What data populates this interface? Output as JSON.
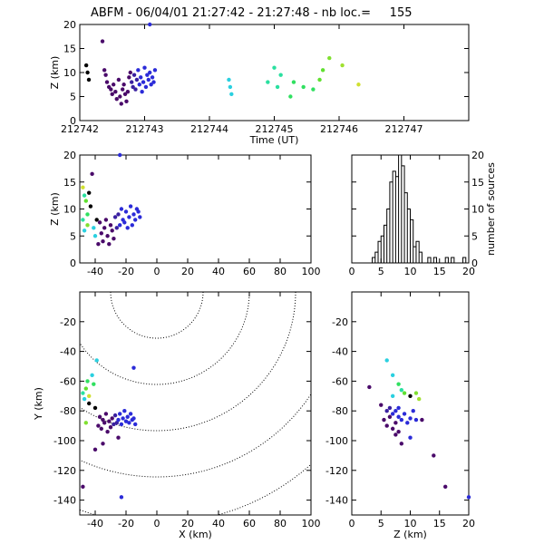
{
  "title": "ABFM - 06/04/01 21:27:42 - 21:27:48 - nb loc.=     155",
  "chart_data": [
    {
      "id": "time",
      "type": "scatter",
      "xlabel": "Time (UT)",
      "ylabel": "Z (km)",
      "xlim": [
        212742,
        212748
      ],
      "ylim": [
        0,
        20
      ],
      "xticks": [
        212742,
        212743,
        212744,
        212745,
        212746,
        212747
      ],
      "xticklabels": [
        "212742",
        "212743",
        "212744",
        "212745",
        "212746",
        "212747"
      ],
      "yticks": [
        0,
        5,
        10,
        15,
        20
      ],
      "points": [
        {
          "x": 212742.1,
          "y": 11.5,
          "c": "#000000"
        },
        {
          "x": 212742.12,
          "y": 10.0,
          "c": "#000000"
        },
        {
          "x": 212742.14,
          "y": 8.5,
          "c": "#000000"
        },
        {
          "x": 212742.35,
          "y": 16.5,
          "c": "#4a0a6a"
        },
        {
          "x": 212742.38,
          "y": 10.5,
          "c": "#4a0a6a"
        },
        {
          "x": 212742.4,
          "y": 9.5,
          "c": "#4a0a6a"
        },
        {
          "x": 212742.42,
          "y": 8.0,
          "c": "#4a0a6a"
        },
        {
          "x": 212742.45,
          "y": 7.0,
          "c": "#4a0a6a"
        },
        {
          "x": 212742.48,
          "y": 6.5,
          "c": "#4a0a6a"
        },
        {
          "x": 212742.5,
          "y": 5.5,
          "c": "#4a0a6a"
        },
        {
          "x": 212742.52,
          "y": 7.5,
          "c": "#4a0a6a"
        },
        {
          "x": 212742.55,
          "y": 6.0,
          "c": "#4a0a6a"
        },
        {
          "x": 212742.57,
          "y": 4.5,
          "c": "#4a0a6a"
        },
        {
          "x": 212742.6,
          "y": 8.5,
          "c": "#4a0a6a"
        },
        {
          "x": 212742.62,
          "y": 5.0,
          "c": "#4a0a6a"
        },
        {
          "x": 212742.64,
          "y": 3.5,
          "c": "#4a0a6a"
        },
        {
          "x": 212742.66,
          "y": 6.5,
          "c": "#4a0a6a"
        },
        {
          "x": 212742.68,
          "y": 7.5,
          "c": "#4a0a6a"
        },
        {
          "x": 212742.7,
          "y": 5.5,
          "c": "#4a0a6a"
        },
        {
          "x": 212742.72,
          "y": 4.0,
          "c": "#4a0a6a"
        },
        {
          "x": 212742.74,
          "y": 6.0,
          "c": "#4a0a6a"
        },
        {
          "x": 212742.76,
          "y": 9.0,
          "c": "#4a0a6a"
        },
        {
          "x": 212742.78,
          "y": 10.0,
          "c": "#4a0a6a"
        },
        {
          "x": 212742.8,
          "y": 8.0,
          "c": "#3a20a0"
        },
        {
          "x": 212742.82,
          "y": 7.0,
          "c": "#3a20a0"
        },
        {
          "x": 212742.84,
          "y": 9.5,
          "c": "#3a20a0"
        },
        {
          "x": 212742.86,
          "y": 6.5,
          "c": "#3a20a0"
        },
        {
          "x": 212742.88,
          "y": 8.5,
          "c": "#3a20a0"
        },
        {
          "x": 212742.9,
          "y": 10.5,
          "c": "#2b2bd8"
        },
        {
          "x": 212742.92,
          "y": 7.5,
          "c": "#2b2bd8"
        },
        {
          "x": 212742.94,
          "y": 9.0,
          "c": "#2b2bd8"
        },
        {
          "x": 212742.96,
          "y": 6.0,
          "c": "#2b2bd8"
        },
        {
          "x": 212742.98,
          "y": 8.0,
          "c": "#2b2bd8"
        },
        {
          "x": 212743.0,
          "y": 11.0,
          "c": "#2b2bd8"
        },
        {
          "x": 212743.02,
          "y": 7.0,
          "c": "#2b2bd8"
        },
        {
          "x": 212743.04,
          "y": 9.5,
          "c": "#2b2bd8"
        },
        {
          "x": 212743.06,
          "y": 8.5,
          "c": "#2b2bd8"
        },
        {
          "x": 212743.08,
          "y": 10.0,
          "c": "#2b2bd8"
        },
        {
          "x": 212743.1,
          "y": 7.5,
          "c": "#2b2bd8"
        },
        {
          "x": 212743.12,
          "y": 9.0,
          "c": "#2b2bd8"
        },
        {
          "x": 212743.14,
          "y": 8.0,
          "c": "#2b2bd8"
        },
        {
          "x": 212743.16,
          "y": 10.5,
          "c": "#2b2bd8"
        },
        {
          "x": 212743.08,
          "y": 20.0,
          "c": "#2b2bd8"
        },
        {
          "x": 212744.3,
          "y": 8.5,
          "c": "#2ad0e0"
        },
        {
          "x": 212744.32,
          "y": 7.0,
          "c": "#2ad0e0"
        },
        {
          "x": 212744.34,
          "y": 5.5,
          "c": "#2ad0e0"
        },
        {
          "x": 212744.9,
          "y": 8.0,
          "c": "#2ae0a0"
        },
        {
          "x": 212745.0,
          "y": 11.0,
          "c": "#2ae0a0"
        },
        {
          "x": 212745.05,
          "y": 7.0,
          "c": "#2ae0a0"
        },
        {
          "x": 212745.1,
          "y": 9.5,
          "c": "#2ae0a0"
        },
        {
          "x": 212745.25,
          "y": 5.0,
          "c": "#30e060"
        },
        {
          "x": 212745.3,
          "y": 8.0,
          "c": "#30e060"
        },
        {
          "x": 212745.45,
          "y": 7.0,
          "c": "#30e060"
        },
        {
          "x": 212745.6,
          "y": 6.5,
          "c": "#30e060"
        },
        {
          "x": 212745.7,
          "y": 8.5,
          "c": "#60e030"
        },
        {
          "x": 212745.75,
          "y": 10.5,
          "c": "#60e030"
        },
        {
          "x": 212745.85,
          "y": 13.0,
          "c": "#80e030"
        },
        {
          "x": 212746.05,
          "y": 11.5,
          "c": "#a0e030"
        },
        {
          "x": 212746.3,
          "y": 7.5,
          "c": "#d0e030"
        }
      ]
    },
    {
      "id": "xz",
      "type": "scatter",
      "xlabel": "",
      "ylabel": "Z (km)",
      "xlim": [
        -50,
        100
      ],
      "ylim": [
        0,
        20
      ],
      "xticks": [
        -40,
        -20,
        0,
        20,
        40,
        60,
        80,
        100
      ],
      "yticks": [
        0,
        5,
        10,
        15,
        20
      ],
      "points": [
        {
          "x": -48,
          "y": 8.0,
          "c": "#2ae0a0"
        },
        {
          "x": -47,
          "y": 6.0,
          "c": "#2ad0e0"
        },
        {
          "x": -46,
          "y": 11.5,
          "c": "#60e030"
        },
        {
          "x": -45,
          "y": 9.0,
          "c": "#30e060"
        },
        {
          "x": -47,
          "y": 12.5,
          "c": "#2ae0a0"
        },
        {
          "x": -44,
          "y": 13.0,
          "c": "#000000"
        },
        {
          "x": -43,
          "y": 10.5,
          "c": "#000000"
        },
        {
          "x": -42,
          "y": 16.5,
          "c": "#4a0a6a"
        },
        {
          "x": -41,
          "y": 6.5,
          "c": "#2ad0e0"
        },
        {
          "x": -40,
          "y": 5.0,
          "c": "#2ad0e0"
        },
        {
          "x": -39,
          "y": 8.0,
          "c": "#000000"
        },
        {
          "x": -38,
          "y": 3.5,
          "c": "#4a0a6a"
        },
        {
          "x": -37,
          "y": 7.5,
          "c": "#4a0a6a"
        },
        {
          "x": -36,
          "y": 5.5,
          "c": "#4a0a6a"
        },
        {
          "x": -35,
          "y": 4.0,
          "c": "#4a0a6a"
        },
        {
          "x": -34,
          "y": 6.5,
          "c": "#4a0a6a"
        },
        {
          "x": -33,
          "y": 8.0,
          "c": "#4a0a6a"
        },
        {
          "x": -32,
          "y": 5.0,
          "c": "#4a0a6a"
        },
        {
          "x": -31,
          "y": 3.5,
          "c": "#4a0a6a"
        },
        {
          "x": -30,
          "y": 7.0,
          "c": "#4a0a6a"
        },
        {
          "x": -29,
          "y": 6.0,
          "c": "#4a0a6a"
        },
        {
          "x": -28,
          "y": 4.5,
          "c": "#4a0a6a"
        },
        {
          "x": -27,
          "y": 8.5,
          "c": "#3a20a0"
        },
        {
          "x": -26,
          "y": 6.5,
          "c": "#3a20a0"
        },
        {
          "x": -25,
          "y": 9.0,
          "c": "#3a20a0"
        },
        {
          "x": -24,
          "y": 7.0,
          "c": "#2b2bd8"
        },
        {
          "x": -23,
          "y": 10.0,
          "c": "#2b2bd8"
        },
        {
          "x": -22,
          "y": 8.0,
          "c": "#2b2bd8"
        },
        {
          "x": -21,
          "y": 7.5,
          "c": "#2b2bd8"
        },
        {
          "x": -20,
          "y": 9.5,
          "c": "#2b2bd8"
        },
        {
          "x": -19,
          "y": 6.5,
          "c": "#2b2bd8"
        },
        {
          "x": -18,
          "y": 8.5,
          "c": "#2b2bd8"
        },
        {
          "x": -17,
          "y": 10.5,
          "c": "#2b2bd8"
        },
        {
          "x": -16,
          "y": 7.0,
          "c": "#2b2bd8"
        },
        {
          "x": -15,
          "y": 9.0,
          "c": "#2b2bd8"
        },
        {
          "x": -14,
          "y": 8.0,
          "c": "#2b2bd8"
        },
        {
          "x": -13,
          "y": 10.0,
          "c": "#2b2bd8"
        },
        {
          "x": -12,
          "y": 9.5,
          "c": "#2b2bd8"
        },
        {
          "x": -11,
          "y": 8.5,
          "c": "#2b2bd8"
        },
        {
          "x": -24,
          "y": 20.0,
          "c": "#2b2bd8"
        },
        {
          "x": -48,
          "y": 14.0,
          "c": "#d0e030"
        },
        {
          "x": -45,
          "y": 7.0,
          "c": "#80e030"
        }
      ]
    },
    {
      "id": "hist",
      "type": "bar",
      "xlabel": "",
      "ylabel": "number of sources",
      "xlim": [
        0,
        20
      ],
      "ylim": [
        0,
        20
      ],
      "xticks": [
        0,
        5,
        10,
        15,
        20
      ],
      "yticks": [
        0,
        5,
        10,
        15,
        20
      ],
      "bin_width": 0.5,
      "bins_start": [
        3.5,
        4.0,
        4.5,
        5.0,
        5.5,
        6.0,
        6.5,
        7.0,
        7.5,
        8.0,
        8.5,
        9.0,
        9.5,
        10.0,
        10.5,
        11.0,
        11.5,
        13.0,
        14.0,
        16.0,
        17.0,
        19.0
      ],
      "counts": [
        1,
        2,
        4,
        5,
        7,
        10,
        15,
        17,
        16,
        20,
        18,
        13,
        10,
        8,
        3,
        4,
        2,
        1,
        1,
        1,
        1,
        1
      ]
    },
    {
      "id": "xy",
      "type": "scatter",
      "xlabel": "X (km)",
      "ylabel": "Y (km)",
      "xlim": [
        -50,
        100
      ],
      "ylim": [
        -150,
        0
      ],
      "xticks": [
        -40,
        -20,
        0,
        20,
        40,
        60,
        80,
        100
      ],
      "yticks": [
        -140,
        -120,
        -100,
        -80,
        -60,
        -40,
        -20
      ],
      "rings_km": [
        30,
        60,
        90,
        120,
        150
      ],
      "points": [
        {
          "x": -48,
          "y": -68,
          "c": "#2ae0a0"
        },
        {
          "x": -47,
          "y": -72,
          "c": "#2ad0e0"
        },
        {
          "x": -46,
          "y": -65,
          "c": "#60e030"
        },
        {
          "x": -45,
          "y": -60,
          "c": "#30e060"
        },
        {
          "x": -44,
          "y": -75,
          "c": "#000000"
        },
        {
          "x": -42,
          "y": -56,
          "c": "#2ad0e0"
        },
        {
          "x": -41,
          "y": -62,
          "c": "#30e060"
        },
        {
          "x": -40,
          "y": -78,
          "c": "#000000"
        },
        {
          "x": -39,
          "y": -46,
          "c": "#2ad0e0"
        },
        {
          "x": -38,
          "y": -90,
          "c": "#4a0a6a"
        },
        {
          "x": -37,
          "y": -84,
          "c": "#4a0a6a"
        },
        {
          "x": -36,
          "y": -92,
          "c": "#4a0a6a"
        },
        {
          "x": -35,
          "y": -86,
          "c": "#4a0a6a"
        },
        {
          "x": -34,
          "y": -88,
          "c": "#4a0a6a"
        },
        {
          "x": -33,
          "y": -82,
          "c": "#4a0a6a"
        },
        {
          "x": -32,
          "y": -94,
          "c": "#4a0a6a"
        },
        {
          "x": -31,
          "y": -87,
          "c": "#4a0a6a"
        },
        {
          "x": -30,
          "y": -91,
          "c": "#4a0a6a"
        },
        {
          "x": -29,
          "y": -85,
          "c": "#4a0a6a"
        },
        {
          "x": -28,
          "y": -89,
          "c": "#3a20a0"
        },
        {
          "x": -27,
          "y": -83,
          "c": "#3a20a0"
        },
        {
          "x": -26,
          "y": -88,
          "c": "#3a20a0"
        },
        {
          "x": -25,
          "y": -86,
          "c": "#2b2bd8"
        },
        {
          "x": -24,
          "y": -82,
          "c": "#2b2bd8"
        },
        {
          "x": -23,
          "y": -89,
          "c": "#2b2bd8"
        },
        {
          "x": -22,
          "y": -85,
          "c": "#2b2bd8"
        },
        {
          "x": -21,
          "y": -80,
          "c": "#2b2bd8"
        },
        {
          "x": -20,
          "y": -87,
          "c": "#2b2bd8"
        },
        {
          "x": -19,
          "y": -84,
          "c": "#2b2bd8"
        },
        {
          "x": -18,
          "y": -88,
          "c": "#2b2bd8"
        },
        {
          "x": -17,
          "y": -82,
          "c": "#2b2bd8"
        },
        {
          "x": -16,
          "y": -86,
          "c": "#2b2bd8"
        },
        {
          "x": -15,
          "y": -85,
          "c": "#2b2bd8"
        },
        {
          "x": -14,
          "y": -89,
          "c": "#2b2bd8"
        },
        {
          "x": -15,
          "y": -51,
          "c": "#2b2bd8"
        },
        {
          "x": -40,
          "y": -106,
          "c": "#4a0a6a"
        },
        {
          "x": -25,
          "y": -98,
          "c": "#4a0a6a"
        },
        {
          "x": -35,
          "y": -102,
          "c": "#4a0a6a"
        },
        {
          "x": -48,
          "y": -131,
          "c": "#4a0a6a"
        },
        {
          "x": -23,
          "y": -138,
          "c": "#2b2bd8"
        },
        {
          "x": -46,
          "y": -88,
          "c": "#80e030"
        },
        {
          "x": -44,
          "y": -70,
          "c": "#d0e030"
        }
      ]
    },
    {
      "id": "zy",
      "type": "scatter",
      "xlabel": "Z (km)",
      "ylabel": "",
      "xlim": [
        0,
        20
      ],
      "ylim": [
        -150,
        0
      ],
      "xticks": [
        0,
        5,
        10,
        15,
        20
      ],
      "yticks": [
        -140,
        -120,
        -100,
        -80,
        -60,
        -40,
        -20
      ],
      "points": [
        {
          "x": 3.0,
          "y": -64,
          "c": "#4a0a6a"
        },
        {
          "x": 5.0,
          "y": -76,
          "c": "#4a0a6a"
        },
        {
          "x": 5.5,
          "y": -86,
          "c": "#4a0a6a"
        },
        {
          "x": 6.0,
          "y": -90,
          "c": "#4a0a6a"
        },
        {
          "x": 6.5,
          "y": -84,
          "c": "#4a0a6a"
        },
        {
          "x": 7.0,
          "y": -92,
          "c": "#4a0a6a"
        },
        {
          "x": 7.5,
          "y": -88,
          "c": "#4a0a6a"
        },
        {
          "x": 8.0,
          "y": -94,
          "c": "#4a0a6a"
        },
        {
          "x": 6.0,
          "y": -80,
          "c": "#3a20a0"
        },
        {
          "x": 6.5,
          "y": -78,
          "c": "#3a20a0"
        },
        {
          "x": 7.0,
          "y": -82,
          "c": "#2b2bd8"
        },
        {
          "x": 7.5,
          "y": -80,
          "c": "#2b2bd8"
        },
        {
          "x": 8.0,
          "y": -84,
          "c": "#2b2bd8"
        },
        {
          "x": 8.5,
          "y": -86,
          "c": "#2b2bd8"
        },
        {
          "x": 9.0,
          "y": -82,
          "c": "#2b2bd8"
        },
        {
          "x": 9.5,
          "y": -88,
          "c": "#2b2bd8"
        },
        {
          "x": 10.0,
          "y": -85,
          "c": "#2b2bd8"
        },
        {
          "x": 10.5,
          "y": -80,
          "c": "#2b2bd8"
        },
        {
          "x": 11.0,
          "y": -86,
          "c": "#2b2bd8"
        },
        {
          "x": 8.0,
          "y": -78,
          "c": "#2b2bd8"
        },
        {
          "x": 6.0,
          "y": -46,
          "c": "#2ad0e0"
        },
        {
          "x": 7.0,
          "y": -56,
          "c": "#2ad0e0"
        },
        {
          "x": 8.0,
          "y": -62,
          "c": "#30e060"
        },
        {
          "x": 8.5,
          "y": -66,
          "c": "#2ae0a0"
        },
        {
          "x": 9.0,
          "y": -68,
          "c": "#60e030"
        },
        {
          "x": 10.0,
          "y": -70,
          "c": "#000000"
        },
        {
          "x": 11.0,
          "y": -68,
          "c": "#80e030"
        },
        {
          "x": 11.5,
          "y": -72,
          "c": "#a0e030"
        },
        {
          "x": 7.5,
          "y": -96,
          "c": "#4a0a6a"
        },
        {
          "x": 8.5,
          "y": -102,
          "c": "#4a0a6a"
        },
        {
          "x": 12.0,
          "y": -86,
          "c": "#4a0a6a"
        },
        {
          "x": 14.0,
          "y": -110,
          "c": "#4a0a6a"
        },
        {
          "x": 16.0,
          "y": -131,
          "c": "#4a0a6a"
        },
        {
          "x": 20.0,
          "y": -138,
          "c": "#2b2bd8"
        },
        {
          "x": 10.0,
          "y": -98,
          "c": "#2b2bd8"
        },
        {
          "x": 7.0,
          "y": -70,
          "c": "#2ad0e0"
        }
      ]
    }
  ]
}
